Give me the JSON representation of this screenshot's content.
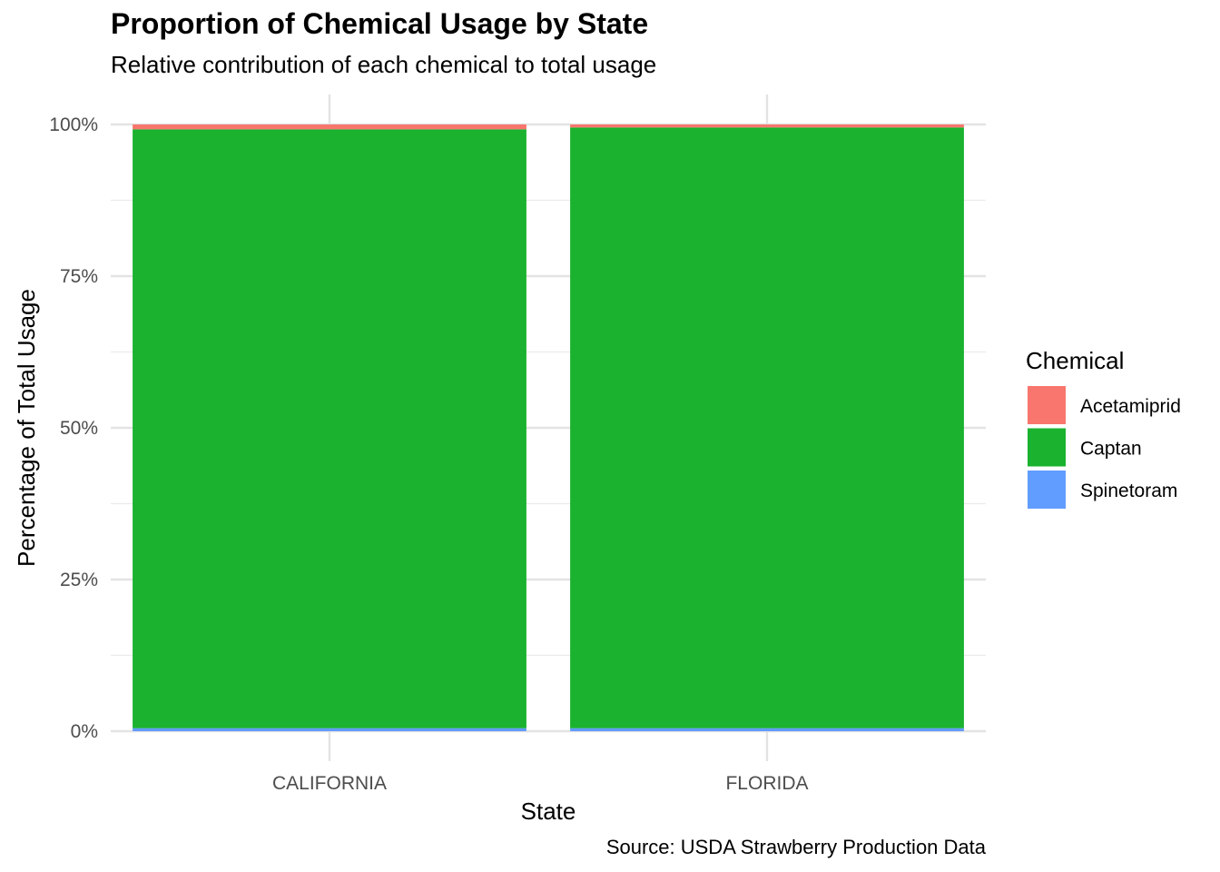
{
  "chart_data": {
    "type": "bar",
    "stacked": true,
    "normalized": true,
    "title": "Proportion of Chemical Usage by State",
    "subtitle": "Relative contribution of each chemical to total usage",
    "caption": "Source: USDA Strawberry Production Data",
    "xlabel": "State",
    "ylabel": "Percentage of Total Usage",
    "categories": [
      "CALIFORNIA",
      "FLORIDA"
    ],
    "ylim": [
      0,
      1
    ],
    "yticks": [
      0,
      0.25,
      0.5,
      0.75,
      1.0
    ],
    "ytick_labels": [
      "0%",
      "25%",
      "50%",
      "75%",
      "100%"
    ],
    "grid": true,
    "legend": {
      "title": "Chemical",
      "position": "right"
    },
    "series": [
      {
        "name": "Acetamiprid",
        "color": "#F8766D",
        "values": [
          0.008,
          0.005
        ]
      },
      {
        "name": "Captan",
        "color": "#1AB22F",
        "values": [
          0.987,
          0.99
        ]
      },
      {
        "name": "Spinetoram",
        "color": "#619CFF",
        "values": [
          0.005,
          0.005
        ]
      }
    ]
  }
}
